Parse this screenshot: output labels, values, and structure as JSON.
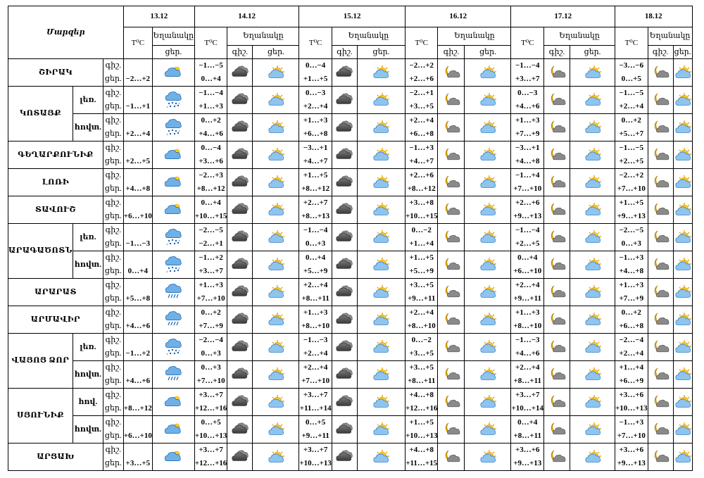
{
  "title": "Մարզեր",
  "dates": [
    "13.12",
    "14.12",
    "15.12",
    "16.12",
    "17.12",
    "18.12"
  ],
  "labels": {
    "temp": "T⁰C",
    "weather": "Եղանակը",
    "night": "գիշ.",
    "day": "ցեր."
  },
  "first_day_weather": "Եղանակը",
  "icons": {
    "partly_cloudy": "partly-cloudy-icon",
    "cloudy": "cloudy-icon",
    "moon_cloud": "moon-cloud-icon",
    "sun_cloud": "sun-cloud-icon",
    "rain": "rain-icon",
    "rain_snow": "rain-snow-icon"
  },
  "rows": [
    {
      "region": "ՇԻՐԱԿ",
      "sub": "",
      "d13": "−2…+2",
      "i13": "partly_cloudy",
      "days": [
        [
          "−1…−5",
          "0…+4",
          "cloudy",
          "sun_cloud"
        ],
        [
          "0…−4",
          "+1…+5",
          "cloudy",
          "sun_cloud"
        ],
        [
          "−2…+2",
          "+2…+6",
          "moon_cloud",
          "sun_cloud"
        ],
        [
          "−1…−4",
          "+3…+7",
          "moon_cloud",
          "sun_cloud"
        ],
        [
          "−3…−6",
          "0…+5",
          "moon_cloud",
          "sun_cloud"
        ]
      ]
    },
    {
      "region": "ԿՈՏԱՅՔ",
      "sub": "լեռ.",
      "d13": "−1…+1",
      "i13": "rain_snow",
      "days": [
        [
          "−1…−4",
          "+1…+3",
          "cloudy",
          "sun_cloud"
        ],
        [
          "0…−3",
          "+2…+4",
          "cloudy",
          "sun_cloud"
        ],
        [
          "−2…+1",
          "+3…+5",
          "moon_cloud",
          "sun_cloud"
        ],
        [
          "0…−3",
          "+4…+6",
          "moon_cloud",
          "sun_cloud"
        ],
        [
          "−1…−5",
          "+2…+4",
          "moon_cloud",
          "sun_cloud"
        ]
      ]
    },
    {
      "region": "",
      "sub": "հովտ.",
      "d13": "+2…+4",
      "i13": "rain_snow",
      "days": [
        [
          "0…+2",
          "+4…+6",
          "cloudy",
          "sun_cloud"
        ],
        [
          "+1…+3",
          "+6…+8",
          "cloudy",
          "sun_cloud"
        ],
        [
          "+2…+4",
          "+6…+8",
          "moon_cloud",
          "sun_cloud"
        ],
        [
          "+1…+3",
          "+7…+9",
          "moon_cloud",
          "sun_cloud"
        ],
        [
          "0…+2",
          "+5…+7",
          "moon_cloud",
          "sun_cloud"
        ]
      ]
    },
    {
      "region": "ԳԵՂԱՐՔՈՒՆԻՔ",
      "sub": "",
      "d13": "+2…+5",
      "i13": "partly_cloudy",
      "days": [
        [
          "0…−4",
          "+3…+6",
          "cloudy",
          "sun_cloud"
        ],
        [
          "−3…+1",
          "+4…+7",
          "cloudy",
          "sun_cloud"
        ],
        [
          "−1…+3",
          "+4…+7",
          "moon_cloud",
          "sun_cloud"
        ],
        [
          "−3…+1",
          "+4…+8",
          "moon_cloud",
          "sun_cloud"
        ],
        [
          "−1…−5",
          "+2…+5",
          "moon_cloud",
          "sun_cloud"
        ]
      ]
    },
    {
      "region": "ԼՈՌԻ",
      "sub": "",
      "d13": "+4…+8",
      "i13": "partly_cloudy",
      "days": [
        [
          "−2…+3",
          "+8…+12",
          "cloudy",
          "sun_cloud"
        ],
        [
          "+1…+5",
          "+8…+12",
          "cloudy",
          "sun_cloud"
        ],
        [
          "+2…+6",
          "+8…+12",
          "moon_cloud",
          "sun_cloud"
        ],
        [
          "−1…+4",
          "+7…+10",
          "moon_cloud",
          "sun_cloud"
        ],
        [
          "−2…+2",
          "+7…+10",
          "moon_cloud",
          "sun_cloud"
        ]
      ]
    },
    {
      "region": "ՏԱՎՈՒՇ",
      "sub": "",
      "d13": "+6…+10",
      "i13": "partly_cloudy",
      "days": [
        [
          "0…+4",
          "+10…+15",
          "cloudy",
          "sun_cloud"
        ],
        [
          "+2…+7",
          "+8…+13",
          "cloudy",
          "sun_cloud"
        ],
        [
          "+3…+8",
          "+10…+15",
          "moon_cloud",
          "sun_cloud"
        ],
        [
          "+2…+6",
          "+9…+13",
          "moon_cloud",
          "sun_cloud"
        ],
        [
          "+1…+5",
          "+9…+13",
          "moon_cloud",
          "sun_cloud"
        ]
      ]
    },
    {
      "region": "ԱՐԱԳԱԾՈՏՆ",
      "sub": "լեռ.",
      "d13": "−1…−3",
      "i13": "rain_snow",
      "days": [
        [
          "−2…−5",
          "−2…+1",
          "cloudy",
          "sun_cloud"
        ],
        [
          "−1…−4",
          "0…+3",
          "cloudy",
          "sun_cloud"
        ],
        [
          "0…−2",
          "+1…+4",
          "moon_cloud",
          "sun_cloud"
        ],
        [
          "−1…−4",
          "+2…+5",
          "moon_cloud",
          "sun_cloud"
        ],
        [
          "−2…−5",
          "0…+3",
          "moon_cloud",
          "sun_cloud"
        ]
      ]
    },
    {
      "region": "",
      "sub": "հովտ.",
      "d13": "0…+4",
      "i13": "rain_snow",
      "days": [
        [
          "−1…+2",
          "+3…+7",
          "cloudy",
          "sun_cloud"
        ],
        [
          "0…+4",
          "+5…+9",
          "cloudy",
          "sun_cloud"
        ],
        [
          "+1…+5",
          "+5…+9",
          "moon_cloud",
          "sun_cloud"
        ],
        [
          "0…+4",
          "+6…+10",
          "moon_cloud",
          "sun_cloud"
        ],
        [
          "−1…+3",
          "+4…+8",
          "moon_cloud",
          "sun_cloud"
        ]
      ]
    },
    {
      "region": "ԱՐԱՐԱՏ",
      "sub": "",
      "d13": "+5…+8",
      "i13": "rain",
      "days": [
        [
          "+1…+3",
          "+7…+10",
          "cloudy",
          "sun_cloud"
        ],
        [
          "+2…+4",
          "+8…+11",
          "cloudy",
          "sun_cloud"
        ],
        [
          "+3…+5",
          "+9…+11",
          "moon_cloud",
          "sun_cloud"
        ],
        [
          "+2…+4",
          "+9…+11",
          "moon_cloud",
          "sun_cloud"
        ],
        [
          "+1…+3",
          "+7…+9",
          "moon_cloud",
          "sun_cloud"
        ]
      ]
    },
    {
      "region": "ԱՐՄԱՎԻՐ",
      "sub": "",
      "d13": "+4…+6",
      "i13": "rain",
      "days": [
        [
          "0…+2",
          "+7…+9",
          "cloudy",
          "sun_cloud"
        ],
        [
          "+1…+3",
          "+8…+10",
          "cloudy",
          "sun_cloud"
        ],
        [
          "+2…+4",
          "+8…+10",
          "moon_cloud",
          "sun_cloud"
        ],
        [
          "+1…+3",
          "+8…+10",
          "moon_cloud",
          "sun_cloud"
        ],
        [
          "0…+2",
          "+6…+8",
          "moon_cloud",
          "sun_cloud"
        ]
      ]
    },
    {
      "region": "ՎԱՅՈՑ ՁՈՐ",
      "sub": "լեռ.",
      "d13": "−1…+2",
      "i13": "rain_snow",
      "days": [
        [
          "−2…−4",
          "0…+3",
          "cloudy",
          "sun_cloud"
        ],
        [
          "−1…−3",
          "+2…+4",
          "cloudy",
          "sun_cloud"
        ],
        [
          "0…−2",
          "+3…+5",
          "moon_cloud",
          "sun_cloud"
        ],
        [
          "−1…−3",
          "+4…+6",
          "moon_cloud",
          "sun_cloud"
        ],
        [
          "−2…−4",
          "+2…+4",
          "moon_cloud",
          "sun_cloud"
        ]
      ]
    },
    {
      "region": "",
      "sub": "հովտ.",
      "d13": "+4…+6",
      "i13": "rain",
      "days": [
        [
          "0…+3",
          "+7…+10",
          "cloudy",
          "sun_cloud"
        ],
        [
          "+2…+4",
          "+7…+10",
          "cloudy",
          "sun_cloud"
        ],
        [
          "+3…+5",
          "+8…+11",
          "moon_cloud",
          "sun_cloud"
        ],
        [
          "+2…+4",
          "+8…+11",
          "moon_cloud",
          "sun_cloud"
        ],
        [
          "+1…+4",
          "+6…+9",
          "moon_cloud",
          "sun_cloud"
        ]
      ]
    },
    {
      "region": "ՍՅՈՒՆԻՔ",
      "sub": "հով.",
      "d13": "+8…+12",
      "i13": "partly_cloudy",
      "days": [
        [
          "+3…+7",
          "+12…+16",
          "cloudy",
          "sun_cloud"
        ],
        [
          "+3…+7",
          "+11…+14",
          "cloudy",
          "sun_cloud"
        ],
        [
          "+4…+8",
          "+12…+16",
          "moon_cloud",
          "sun_cloud"
        ],
        [
          "+3…+7",
          "+10…+14",
          "moon_cloud",
          "sun_cloud"
        ],
        [
          "+3…+6",
          "+10…+13",
          "moon_cloud",
          "sun_cloud"
        ]
      ]
    },
    {
      "region": "",
      "sub": "հովտ.",
      "d13": "+6…+10",
      "i13": "partly_cloudy",
      "days": [
        [
          "0…+5",
          "+10…+13",
          "cloudy",
          "sun_cloud"
        ],
        [
          "0…+5",
          "+9…+11",
          "cloudy",
          "sun_cloud"
        ],
        [
          "+1…+5",
          "+10…+13",
          "moon_cloud",
          "sun_cloud"
        ],
        [
          "0…+4",
          "+8…+11",
          "moon_cloud",
          "sun_cloud"
        ],
        [
          "−1…+3",
          "+7…+10",
          "moon_cloud",
          "sun_cloud"
        ]
      ]
    },
    {
      "region": "ԱՐՑԱԽ",
      "sub": "",
      "d13": "+3…+5",
      "i13": "partly_cloudy",
      "days": [
        [
          "+3…+7",
          "+12…+16",
          "cloudy",
          "sun_cloud"
        ],
        [
          "+3…+7",
          "+10…+13",
          "cloudy",
          "sun_cloud"
        ],
        [
          "+4…+8",
          "+11…+15",
          "moon_cloud",
          "sun_cloud"
        ],
        [
          "+3…+6",
          "+9…+13",
          "moon_cloud",
          "sun_cloud"
        ],
        [
          "+3…+6",
          "+9…+13",
          "moon_cloud",
          "sun_cloud"
        ]
      ]
    }
  ]
}
